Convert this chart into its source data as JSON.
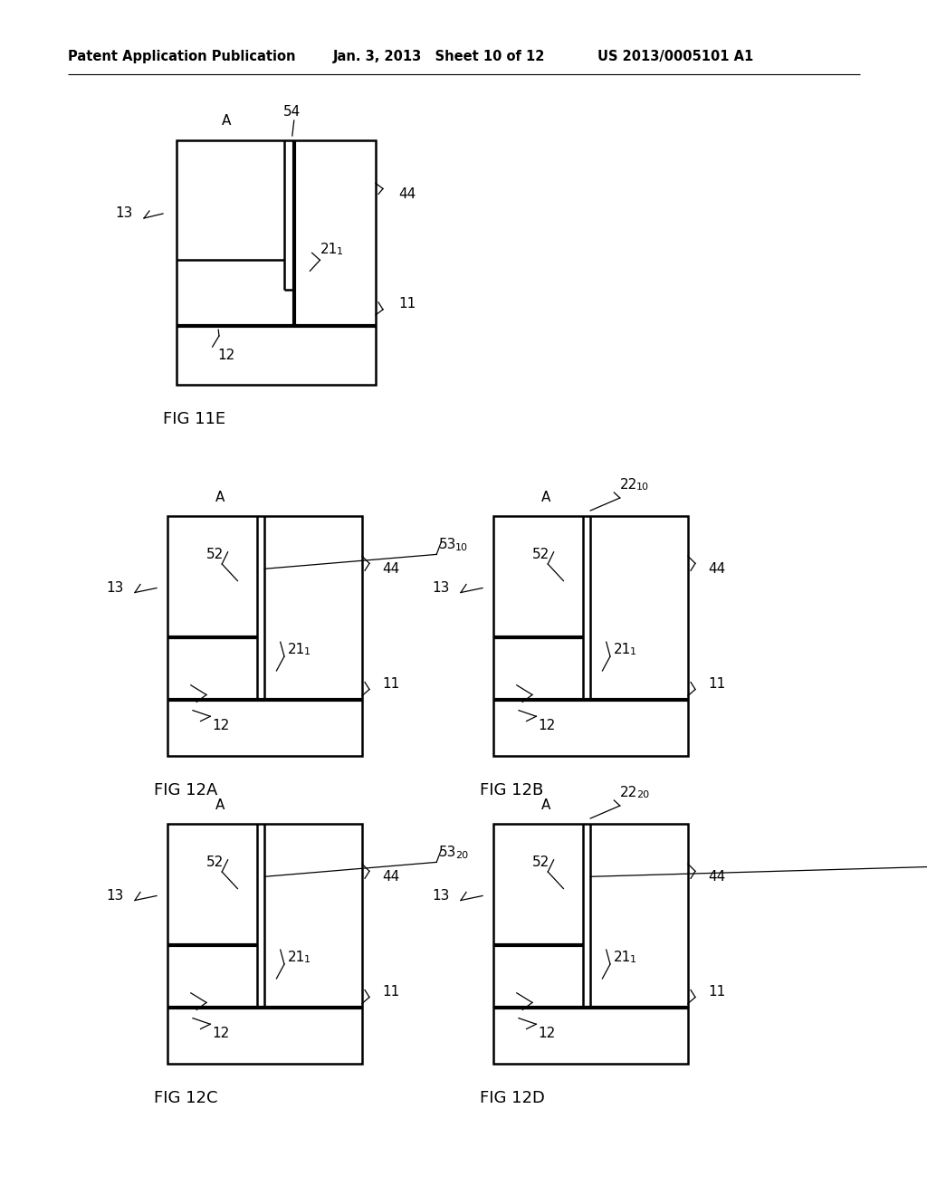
{
  "header_left": "Patent Application Publication",
  "header_mid": "Jan. 3, 2013   Sheet 10 of 12",
  "header_right": "US 2013/0005101 A1",
  "background": "#ffffff"
}
